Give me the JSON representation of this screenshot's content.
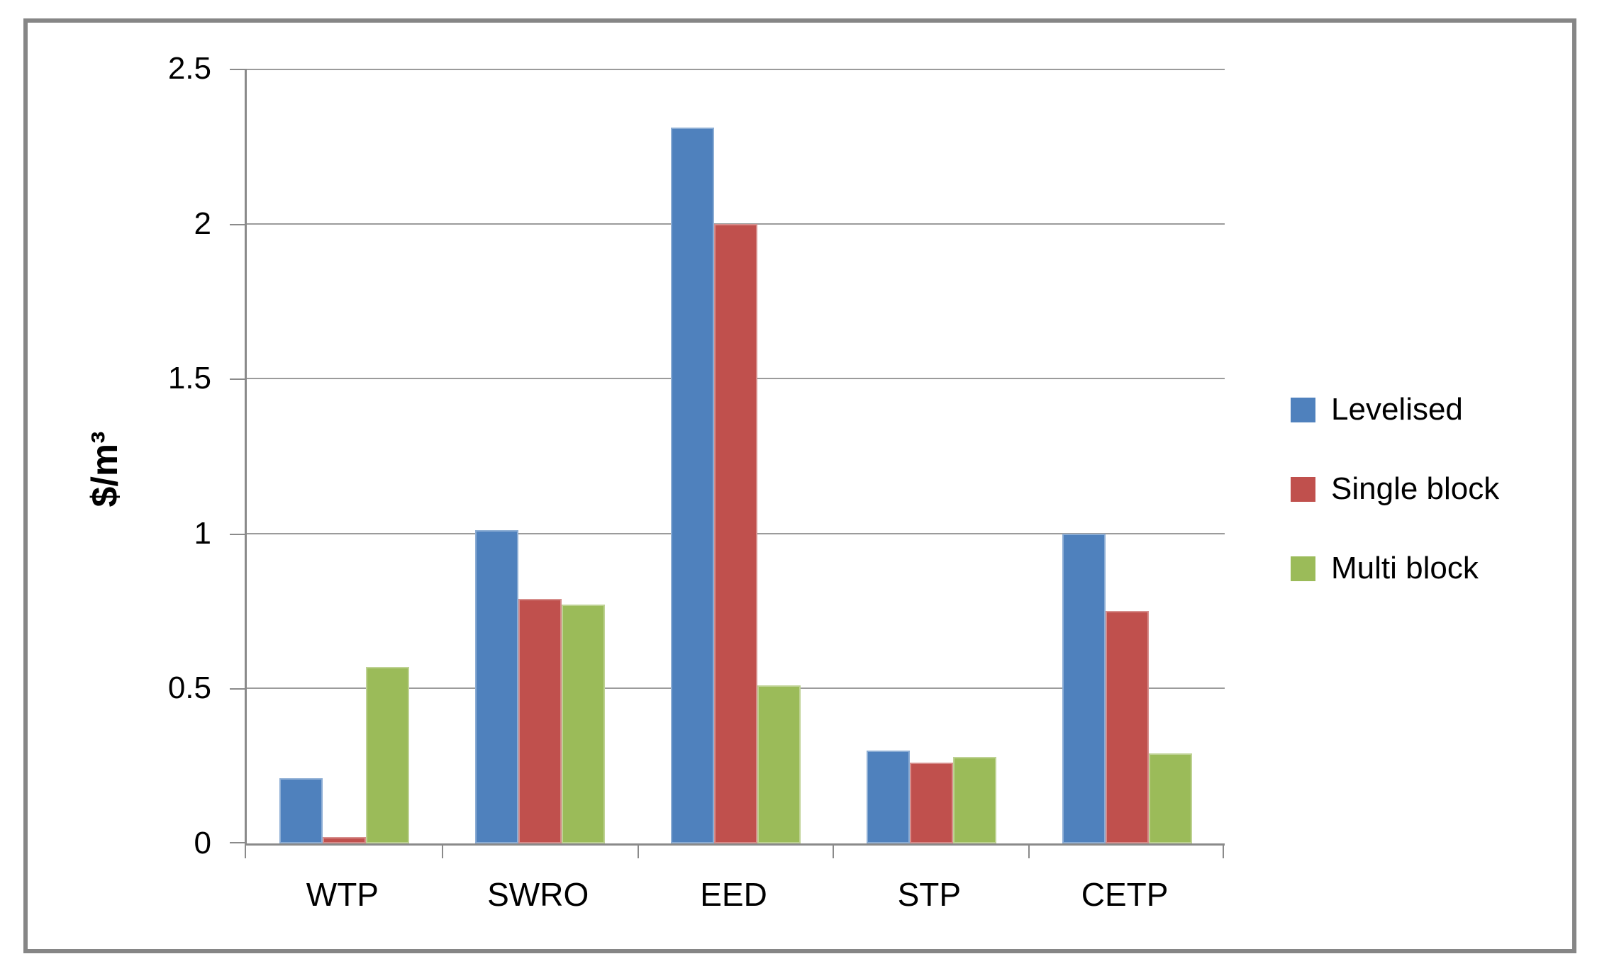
{
  "figure": {
    "frame_border_color": "#868686",
    "background_color": "#ffffff",
    "gridline_color": "#9b9b9b",
    "axis_line_color": "#8a8a8a"
  },
  "chart_data": {
    "type": "bar",
    "title": "",
    "xlabel": "",
    "ylabel": "$/m³",
    "categories": [
      "WTP",
      "SWRO",
      "EED",
      "STP",
      "CETP"
    ],
    "series": [
      {
        "name": "Levelised",
        "color": "#4F81BD",
        "values": [
          0.21,
          1.01,
          2.31,
          0.3,
          1.0
        ]
      },
      {
        "name": "Single block",
        "color": "#C0504D",
        "values": [
          0.02,
          0.79,
          2.0,
          0.26,
          0.75
        ]
      },
      {
        "name": "Multi block",
        "color": "#9BBB59",
        "values": [
          0.57,
          0.77,
          0.51,
          0.28,
          0.29
        ]
      }
    ],
    "ylim": [
      0,
      2.5
    ],
    "ytick_step": 0.5,
    "ytick_labels": [
      "0",
      "0.5",
      "1",
      "1.5",
      "2",
      "2.5"
    ],
    "grid": "horizontal",
    "legend_position": "right"
  }
}
